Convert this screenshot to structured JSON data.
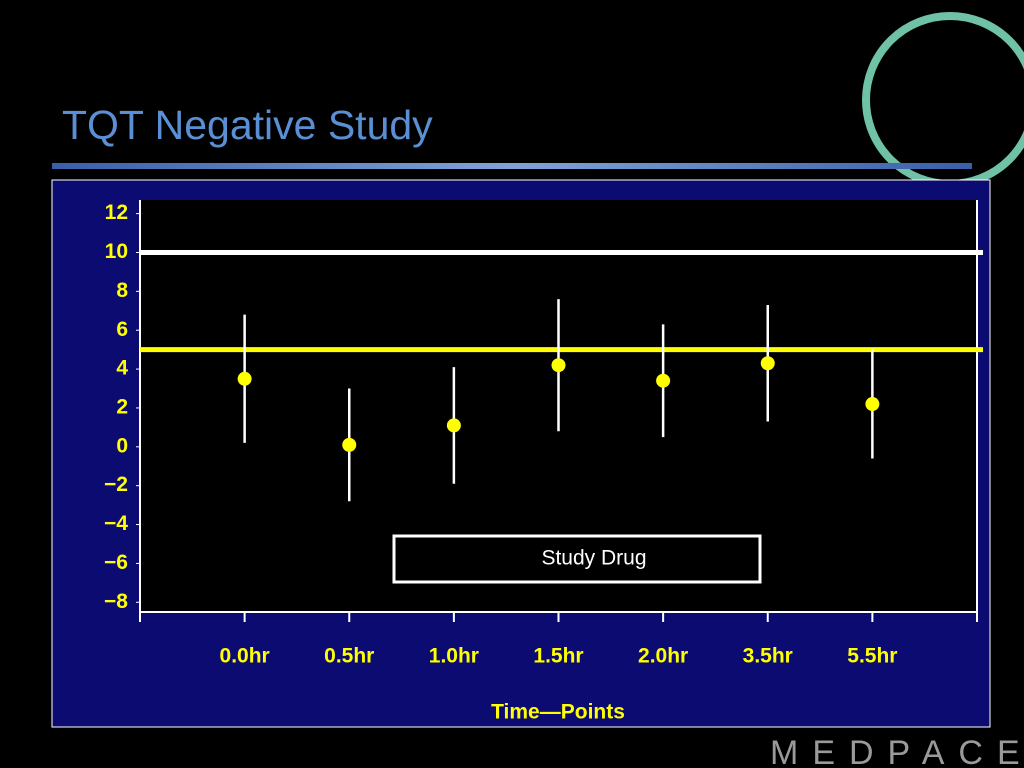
{
  "title": "TQT Negative Study",
  "logo": "MEDPACE",
  "chart_data": {
    "type": "scatter",
    "categories": [
      "0.0hr",
      "0.5hr",
      "1.0hr",
      "1.5hr",
      "2.0hr",
      "3.5hr",
      "5.5hr"
    ],
    "series": [
      {
        "name": "Study Drug",
        "color": "#ffff00",
        "values": [
          3.5,
          0.1,
          1.1,
          4.2,
          3.4,
          4.3,
          2.2
        ],
        "errors": [
          3.3,
          2.9,
          3.0,
          3.4,
          2.9,
          3.0,
          2.8
        ]
      }
    ],
    "reference_lines": [
      {
        "value": 10,
        "color": "#ffffff"
      },
      {
        "value": 5,
        "color": "#ffff00"
      }
    ],
    "x_label": "Time—Points",
    "ylim": [
      -8.5,
      12.7
    ],
    "yticks": [
      12,
      10,
      8,
      6,
      4,
      2,
      0,
      {
        "value": -2,
        "label": "−2"
      },
      {
        "value": -4,
        "label": "−4"
      },
      {
        "value": -6,
        "label": "−6"
      },
      {
        "value": -8,
        "label": "−8"
      }
    ]
  }
}
